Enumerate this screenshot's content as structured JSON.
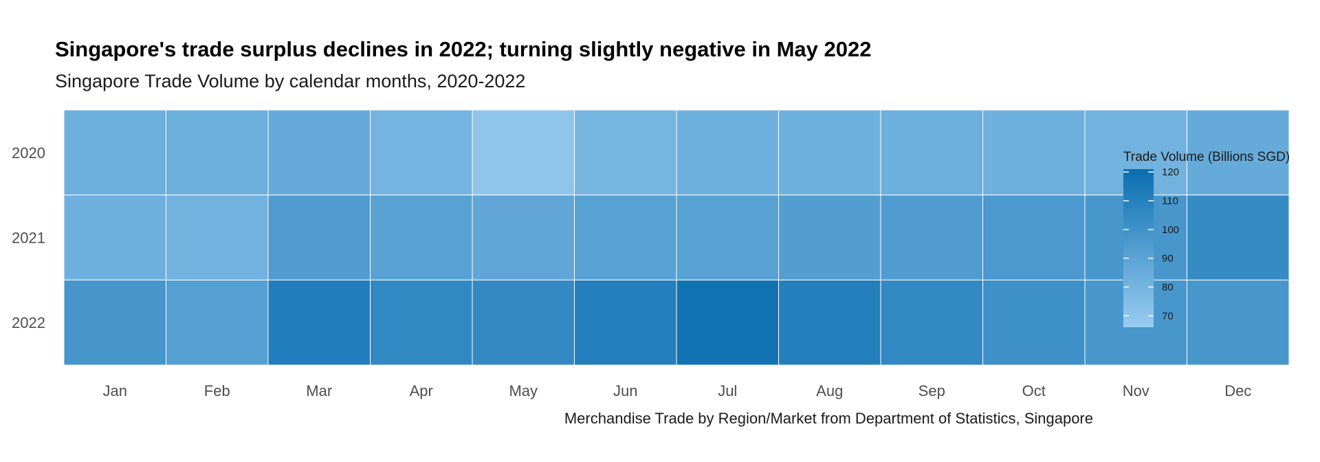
{
  "chart_data": {
    "type": "heatmap",
    "title": "Singapore's trade surplus declines in 2022; turning slightly negative in May 2022",
    "subtitle": "Singapore Trade Volume by calendar months, 2020-2022",
    "caption": "Merchandise Trade by Region/Market from Department of Statistics, Singapore",
    "x_categories": [
      "Jan",
      "Feb",
      "Mar",
      "Apr",
      "May",
      "Jun",
      "Jul",
      "Aug",
      "Sep",
      "Oct",
      "Nov",
      "Dec"
    ],
    "y_categories": [
      "2020",
      "2021",
      "2022"
    ],
    "values": [
      [
        83,
        83,
        86,
        80,
        70,
        79,
        82,
        82,
        83,
        82,
        81,
        86
      ],
      [
        83,
        81,
        94,
        91,
        88,
        91,
        91,
        93,
        94,
        96,
        97,
        104
      ],
      [
        98,
        92,
        112,
        106,
        105,
        111,
        118,
        111,
        106,
        101,
        97,
        97
      ]
    ],
    "legend": {
      "title": "Trade Volume (Billions SGD)",
      "ticks": [
        70,
        80,
        90,
        100,
        110,
        120
      ],
      "range": [
        66,
        121
      ],
      "low_color": "#99ccf0",
      "high_color": "#0a6eb1",
      "placement": "right"
    }
  }
}
